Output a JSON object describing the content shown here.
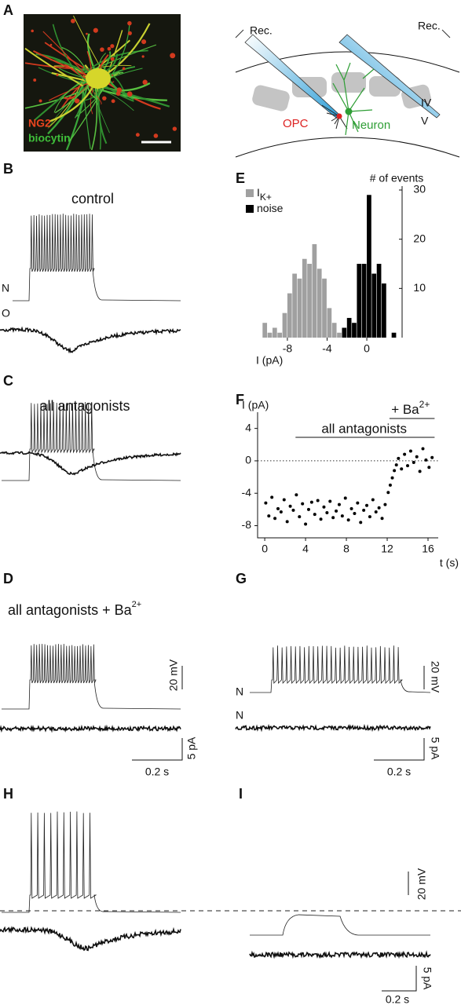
{
  "panel_labels": [
    "A",
    "B",
    "C",
    "D",
    "E",
    "F",
    "G",
    "H",
    "I"
  ],
  "panel_a": {
    "stain_labels": [
      "NG2",
      "biocytin"
    ],
    "diagram_labels": {
      "rec_left": "Rec.",
      "rec_right": "Rec.",
      "opc": "OPC",
      "neuron": "Neuron",
      "layer_iv": "IV",
      "layer_v": "V"
    }
  },
  "panel_b": {
    "title": "control",
    "trace_labels": [
      "N",
      "O"
    ]
  },
  "panel_c": {
    "title": "all antagonists"
  },
  "panel_d": {
    "title": "all antagonists + Ba",
    "title_superscript": "2+"
  },
  "panel_g": {
    "trace_labels": [
      "N",
      "N"
    ]
  },
  "scale_bars": {
    "voltage": "20 mV",
    "current": "5 pA",
    "time": "0.2 s"
  },
  "chart_data": [
    {
      "type": "histogram",
      "y_label": "# of events",
      "x_label": "I (pA)",
      "bins": [
        -11,
        -10.5,
        -10,
        -9.5,
        -9,
        -8.5,
        -8,
        -7.5,
        -7,
        -6.5,
        -6,
        -5.5,
        -5,
        -4.5,
        -4,
        -3.5,
        -3,
        -2.5,
        -2,
        -1.5,
        -1,
        -0.5,
        0,
        0.5,
        1,
        1.5,
        2,
        2.5,
        3
      ],
      "series": [
        {
          "name": "I",
          "name_subscript": "K+",
          "color": "#a0a0a0",
          "values": [
            0,
            3,
            1,
            2,
            1,
            5,
            9,
            13,
            12,
            16,
            15,
            19,
            14,
            12,
            6,
            3,
            1,
            0,
            0,
            0,
            0,
            0,
            0,
            0,
            0,
            0,
            0,
            0
          ]
        },
        {
          "name": "noise",
          "color": "#000000",
          "values": [
            0,
            0,
            0,
            0,
            0,
            0,
            0,
            0,
            0,
            0,
            0,
            0,
            0,
            0,
            0,
            0,
            0,
            2,
            4,
            3,
            15,
            15,
            29,
            13,
            15,
            11,
            0,
            1
          ]
        }
      ],
      "xlim": [
        -11,
        3
      ],
      "ylim": [
        0,
        30
      ],
      "xticks": [
        -8,
        -4,
        0
      ],
      "yticks": [
        10,
        20,
        30
      ]
    },
    {
      "type": "scatter",
      "y_label": "I (pA)",
      "x_label": "t (s)",
      "color": "#000000",
      "x": [
        0.1,
        0.4,
        0.7,
        1.0,
        1.3,
        1.6,
        1.9,
        2.2,
        2.5,
        2.8,
        3.1,
        3.4,
        3.7,
        4.0,
        4.3,
        4.6,
        4.9,
        5.2,
        5.5,
        5.8,
        6.1,
        6.4,
        6.7,
        7.0,
        7.3,
        7.6,
        7.9,
        8.2,
        8.5,
        8.8,
        9.1,
        9.4,
        9.7,
        10.0,
        10.3,
        10.6,
        10.9,
        11.2,
        11.5,
        11.8,
        12.1,
        12.3,
        12.5,
        12.7,
        12.9,
        13.1,
        13.4,
        13.7,
        14.0,
        14.3,
        14.6,
        14.9,
        15.2,
        15.5,
        15.8,
        16.1,
        16.4
      ],
      "values": [
        -5.2,
        -6.8,
        -4.5,
        -7.1,
        -5.9,
        -6.3,
        -4.8,
        -7.5,
        -5.6,
        -6.1,
        -4.2,
        -6.9,
        -5.3,
        -7.8,
        -6.0,
        -5.1,
        -6.6,
        -4.9,
        -7.2,
        -5.7,
        -6.4,
        -5.0,
        -7.0,
        -6.2,
        -5.4,
        -6.8,
        -4.6,
        -7.3,
        -5.9,
        -6.5,
        -5.2,
        -7.6,
        -6.1,
        -5.5,
        -6.9,
        -4.8,
        -6.3,
        -5.8,
        -7.1,
        -5.4,
        -3.9,
        -3.0,
        -2.1,
        -1.2,
        -0.5,
        0.3,
        -1.0,
        0.8,
        -0.6,
        1.2,
        -0.2,
        0.5,
        -1.3,
        1.5,
        0.1,
        -0.8,
        0.4
      ],
      "xlim": [
        -0.7,
        17
      ],
      "ylim": [
        -9.5,
        6
      ],
      "xticks": [
        0,
        4,
        8,
        12,
        16
      ],
      "yticks": [
        4,
        0,
        -4,
        -8
      ],
      "reference_line": 0,
      "annotations": [
        "all antagonists",
        "+ Ba"
      ],
      "annotation_superscript": "2+"
    }
  ]
}
